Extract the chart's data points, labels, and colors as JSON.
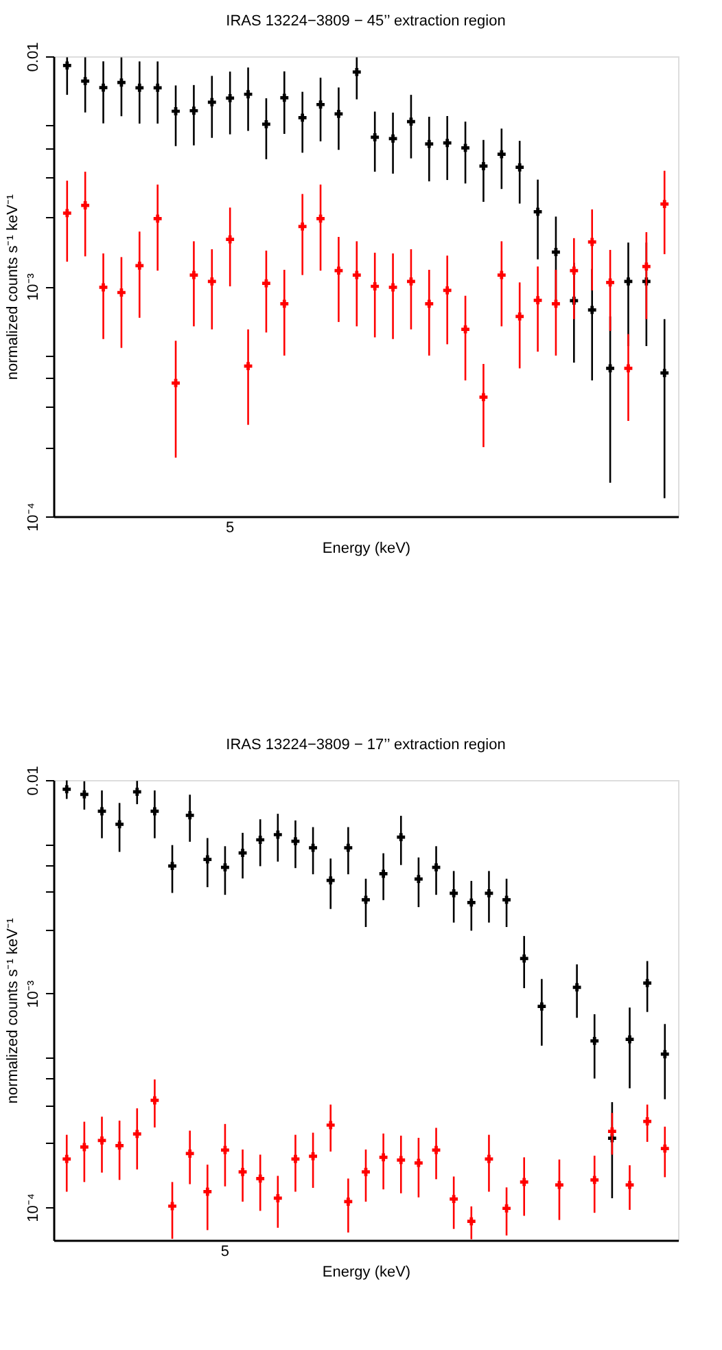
{
  "chart_data": [
    {
      "type": "scatter",
      "title": "IRAS 13224−3809 − 45’’ extraction region",
      "xlabel": "Energy (keV)",
      "ylabel": "normalized counts s⁻¹ keV⁻¹",
      "log": "y",
      "grid": false,
      "marker": "cross",
      "categories": [
        null,
        null,
        null,
        null,
        null,
        null,
        null,
        null,
        null,
        "5",
        null,
        null,
        null,
        null,
        null,
        null,
        null,
        null,
        null,
        null,
        null,
        null,
        null,
        null,
        null,
        null,
        null,
        null,
        null,
        null,
        null,
        null,
        null,
        null
      ],
      "ylim": [
        0.0001,
        0.01
      ],
      "yticks": [
        {
          "value": 0.0001,
          "label": "10⁻⁴"
        },
        {
          "value": 0.0002,
          "label": null
        },
        {
          "value": 0.0003,
          "label": null
        },
        {
          "value": 0.0004,
          "label": null
        },
        {
          "value": 0.0005,
          "label": null
        },
        {
          "value": 0.001,
          "label": "10⁻³"
        },
        {
          "value": 0.002,
          "label": null
        },
        {
          "value": 0.003,
          "label": null
        },
        {
          "value": 0.004,
          "label": null
        },
        {
          "value": 0.005,
          "label": null
        },
        {
          "value": 0.01,
          "label": "0.01"
        }
      ],
      "series": [
        {
          "color": "#000000",
          "values": [
            0.00912,
            0.0078,
            0.00731,
            0.00769,
            0.0073,
            0.0073,
            0.00577,
            0.0058,
            0.00632,
            0.00658,
            0.00684,
            0.00507,
            0.0066,
            0.00541,
            0.00617,
            0.00562,
            0.00855,
            0.00445,
            0.00439,
            0.0052,
            0.00416,
            0.0042,
            0.004,
            0.00333,
            0.00375,
            0.00329,
            0.00211,
            0.00141,
            0.000866,
            0.00079,
            0.00044,
            0.00105,
            0.00105,
            0.00042
          ],
          "errors": [
            [
              0.0068,
              0.0099
            ],
            0.0021,
            0.0022,
            0.0022,
            0.0022,
            0.0022,
            0.0017,
            0.0017,
            0.0019,
            0.002,
            0.0021,
            0.0015,
            0.002,
            0.0016,
            0.0019,
            0.0017,
            [
              0.0065,
              0.0099
            ],
            0.0013,
            0.0013,
            0.0016,
            0.0013,
            0.0013,
            0.0012,
            0.001,
            0.0011,
            0.001,
            0.0008,
            0.0006,
            0.0004,
            0.0004,
            0.0003,
            0.0005,
            0.0005,
            0.0003
          ]
        },
        {
          "color": "#ff0000",
          "values": [
            0.00208,
            0.00225,
            0.00099,
            0.00094,
            0.00123,
            0.00197,
            0.00038,
            0.00112,
            0.00105,
            0.0016,
            0.00045,
            0.00103,
            0.00084,
            0.00182,
            0.00197,
            0.00117,
            0.00112,
            0.001,
            0.00099,
            0.00105,
            0.00084,
            0.00096,
            0.00065,
            0.00033,
            0.00112,
            0.00074,
            0.00087,
            0.00084,
            0.00117,
            0.00156,
            0.00104,
            0.00044,
            0.00122,
            0.00228
          ],
          "errors": [
            0.0008,
            0.0009,
            0.0004,
            0.0004,
            0.0005,
            0.0008,
            0.0002,
            0.00045,
            0.0004,
            0.0006,
            0.0002,
            0.0004,
            0.00034,
            0.0007,
            0.0008,
            0.00047,
            0.00045,
            0.0004,
            0.0004,
            0.0004,
            0.00034,
            0.0004,
            0.00026,
            0.00013,
            0.00045,
            0.0003,
            0.00035,
            0.00034,
            0.00045,
            0.0006,
            0.0004,
            0.00018,
            0.0005,
            0.0009
          ]
        }
      ]
    },
    {
      "type": "scatter",
      "title": "IRAS 13224−3809 − 17’’ extraction region",
      "xlabel": "Energy (keV)",
      "ylabel": "normalized counts s⁻¹ keV⁻¹",
      "log": "y",
      "grid": false,
      "marker": "cross",
      "categories": [
        null,
        null,
        null,
        null,
        null,
        null,
        null,
        null,
        null,
        "5",
        null,
        null,
        null,
        null,
        null,
        null,
        null,
        null,
        null,
        null,
        null,
        null,
        null,
        null,
        null,
        null,
        null,
        null,
        null,
        null,
        null,
        null,
        null,
        null,
        null
      ],
      "ylim": [
        7e-05,
        0.01
      ],
      "yticks": [
        {
          "value": 0.0001,
          "label": "10⁻⁴"
        },
        {
          "value": 0.0002,
          "label": null
        },
        {
          "value": 0.0003,
          "label": null
        },
        {
          "value": 0.0004,
          "label": null
        },
        {
          "value": 0.0005,
          "label": null
        },
        {
          "value": 0.001,
          "label": "10⁻³"
        },
        {
          "value": 0.002,
          "label": null
        },
        {
          "value": 0.003,
          "label": null
        },
        {
          "value": 0.004,
          "label": null
        },
        {
          "value": 0.005,
          "label": null
        },
        {
          "value": 0.01,
          "label": "0.01"
        }
      ],
      "series": [
        {
          "color": "#000000",
          "values": [
            0.00906,
            0.00857,
            0.00714,
            0.00621,
            0.00881,
            0.00714,
            0.00396,
            0.00684,
            0.00425,
            0.0039,
            0.00456,
            0.00525,
            0.00555,
            0.00517,
            0.00482,
            0.00339,
            0.00482,
            0.00275,
            0.00364,
            0.0054,
            0.00344,
            0.0039,
            0.00295,
            0.00267,
            0.00295,
            0.00275,
            0.00146,
            0.00087,
            null,
            0.00107,
            0.0006,
            0.00021,
            0.00061,
            0.00112,
            0.00052
          ],
          "errors": [
            0.0009,
            0.0013,
            0.0018,
            0.0016,
            0.0011,
            0.0018,
            0.001,
            0.0017,
            0.0011,
            0.001,
            0.0011,
            0.0013,
            0.0014,
            0.0013,
            0.0012,
            0.0009,
            0.0012,
            0.0007,
            0.0009,
            0.0014,
            0.0009,
            0.001,
            0.0008,
            0.0007,
            0.0008,
            0.0007,
            0.0004,
            0.0003,
            null,
            0.0003,
            0.0002,
            0.0001,
            0.00025,
            0.0003,
            0.0002
          ]
        },
        {
          "color": "#ff0000",
          "values": [
            0.000168,
            0.000191,
            0.000205,
            0.000194,
            0.00022,
            0.000316,
            0.000101,
            0.000178,
            0.000118,
            0.000185,
            0.000146,
            0.000136,
            0.00011,
            0.000168,
            0.000173,
            0.000242,
            0.000106,
            0.000146,
            0.000171,
            0.000166,
            0.000161,
            0.000185,
            0.000109,
            8.57e-05,
            0.000168,
            9.86e-05,
            0.000131,
            null,
            0.000127,
            null,
            0.000134,
            0.000226,
            0.000127,
            0.000252,
            0.000188
          ],
          "errors": [
            5e-05,
            6e-05,
            6e-05,
            6e-05,
            7e-05,
            8e-05,
            3e-05,
            5e-05,
            4e-05,
            6e-05,
            4e-05,
            4e-05,
            3e-05,
            5e-05,
            5e-05,
            6e-05,
            3e-05,
            4e-05,
            5e-05,
            5e-05,
            5e-05,
            5e-05,
            3e-05,
            1.5e-05,
            5e-05,
            2.5e-05,
            4e-05,
            null,
            4e-05,
            null,
            4e-05,
            5e-05,
            3e-05,
            5e-05,
            5e-05
          ]
        }
      ]
    }
  ]
}
